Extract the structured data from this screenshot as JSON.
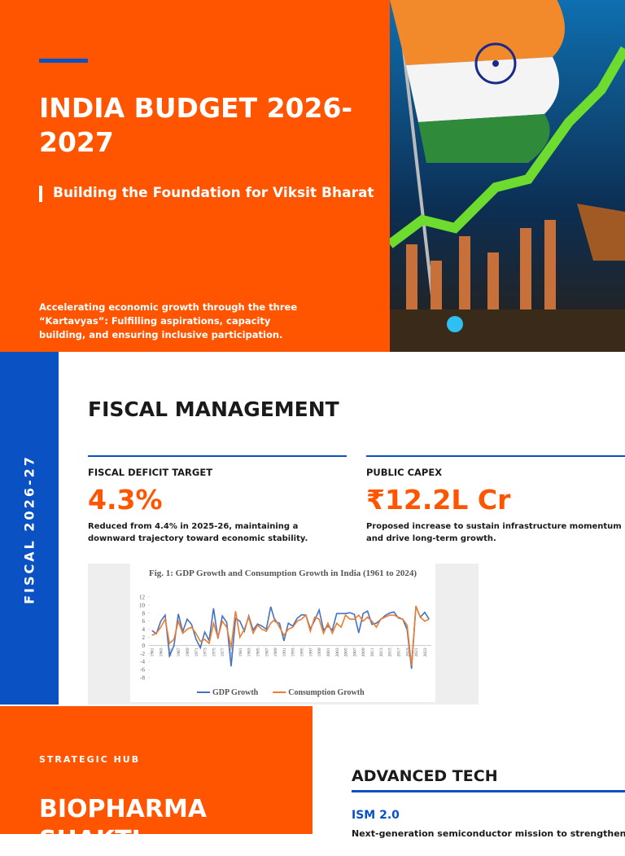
{
  "hero": {
    "title": "INDIA BUDGET 2026-2027",
    "subtitle": "Building the Foundation for Viksit Bharat",
    "description": "Accelerating economic growth through the three “Kartavyas”: Fulfilling aspirations, capacity building, and ensuring inclusive participation."
  },
  "fiscal": {
    "side_label": "FISCAL 2026-27",
    "heading": "FISCAL MANAGEMENT",
    "stats": [
      {
        "label": "FISCAL DEFICIT TARGET",
        "value": "4.3%",
        "note": "Reduced from 4.4% in 2025-26, maintaining a downward trajectory toward economic stability."
      },
      {
        "label": "PUBLIC CAPEX",
        "value": "₹12.2L Cr",
        "note": "Proposed increase to sustain infrastructure momentum and drive long-term growth."
      }
    ]
  },
  "chart_data": {
    "type": "line",
    "title": "Fig. 1: GDP Growth and Consumption Growth in India (1961 to 2024)",
    "categories": [
      "1961",
      null,
      "1963",
      null,
      "1965",
      null,
      "1967",
      null,
      "1969",
      null,
      "1971",
      null,
      "1973",
      null,
      "1975",
      null,
      "1977",
      null,
      "1979",
      null,
      "1981",
      null,
      "1983",
      null,
      "1985",
      null,
      "1987",
      null,
      "1989",
      null,
      "1991",
      null,
      "1993",
      null,
      "1995",
      null,
      "1997",
      null,
      "1999",
      null,
      "2001",
      null,
      "2003",
      null,
      "2005",
      null,
      "2007",
      null,
      "2009",
      null,
      "2011",
      null,
      "2013",
      null,
      "2015",
      null,
      "2017",
      null,
      "2019",
      null,
      "2021",
      null,
      "2023",
      null
    ],
    "series": [
      {
        "name": "GDP Growth",
        "color": "#4472c4",
        "values": [
          3.7,
          2.9,
          6.0,
          7.5,
          -2.6,
          -0.1,
          7.8,
          3.4,
          6.5,
          5.2,
          1.6,
          -0.6,
          3.3,
          1.2,
          9.2,
          1.7,
          7.3,
          5.7,
          -5.2,
          6.7,
          6.0,
          3.5,
          7.3,
          3.8,
          5.3,
          4.8,
          4.0,
          9.6,
          5.9,
          5.5,
          1.1,
          5.5,
          4.8,
          6.7,
          7.6,
          7.5,
          4.1,
          6.2,
          8.8,
          3.8,
          4.8,
          3.8,
          7.9,
          7.9,
          7.9,
          8.1,
          7.7,
          3.1,
          7.9,
          8.5,
          5.2,
          5.5,
          6.4,
          7.4,
          8.0,
          8.3,
          6.8,
          6.5,
          3.9,
          -5.8,
          9.7,
          7.0,
          8.2,
          6.5
        ]
      },
      {
        "name": "Consumption Growth",
        "color": "#ed7d31",
        "values": [
          2.5,
          3.0,
          4.5,
          6.5,
          0.5,
          1.5,
          6.0,
          3.0,
          4.0,
          4.5,
          3.0,
          1.0,
          1.5,
          0.5,
          5.5,
          2.0,
          6.0,
          4.5,
          -0.5,
          8.5,
          2.0,
          4.0,
          7.0,
          3.0,
          5.0,
          4.0,
          3.5,
          5.5,
          6.5,
          4.5,
          2.5,
          4.0,
          4.5,
          6.0,
          6.5,
          7.5,
          3.5,
          7.0,
          6.5,
          3.0,
          5.5,
          3.0,
          5.5,
          4.5,
          7.5,
          6.5,
          6.5,
          7.5,
          6.0,
          7.0,
          6.0,
          4.5,
          6.5,
          7.0,
          7.5,
          7.5,
          7.0,
          6.5,
          5.0,
          -5.0,
          9.8,
          7.0,
          6.0,
          6.5
        ]
      }
    ],
    "ylim": [
      -8,
      12
    ],
    "yticks": [
      -8,
      -6,
      -4,
      -2,
      0,
      2,
      4,
      6,
      8,
      10,
      12
    ],
    "legend": "bottom"
  },
  "strategic": {
    "kicker": "STRATEGIC HUB",
    "title": "BIOPHARMA SHAKTI"
  },
  "tech": {
    "heading": "ADVANCED TECH",
    "item_title": "ISM 2.0",
    "item_text": "Next-generation semiconductor mission to strengthen"
  }
}
